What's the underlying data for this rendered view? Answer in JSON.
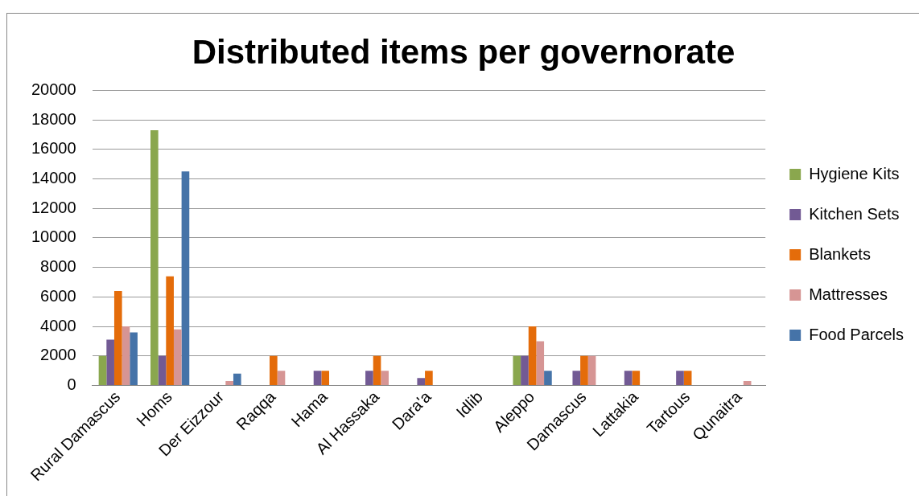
{
  "chart_data": {
    "type": "bar",
    "title": "Distributed items per governorate",
    "categories": [
      "Rural Damascus",
      "Homs",
      "Der Eizzour",
      "Raqqa",
      "Hama",
      "Al Hassaka",
      "Dara'a",
      "Idlib",
      "Aleppo",
      "Damascus",
      "Lattakia",
      "Tartous",
      "Qunaitra"
    ],
    "series": [
      {
        "name": "Hygiene Kits",
        "color": "#8aa74e",
        "values": [
          2000,
          17300,
          0,
          0,
          0,
          0,
          0,
          0,
          2000,
          0,
          0,
          0,
          0
        ]
      },
      {
        "name": "Kitchen Sets",
        "color": "#725a94",
        "values": [
          3100,
          2000,
          0,
          0,
          1000,
          1000,
          500,
          0,
          2000,
          1000,
          1000,
          1000,
          0
        ]
      },
      {
        "name": "Blankets",
        "color": "#e46c0a",
        "values": [
          6400,
          7400,
          0,
          2000,
          1000,
          2000,
          1000,
          0,
          4000,
          2000,
          1000,
          1000,
          0
        ]
      },
      {
        "name": "Mattresses",
        "color": "#d69594",
        "values": [
          4000,
          3800,
          300,
          1000,
          0,
          1000,
          0,
          0,
          3000,
          2000,
          0,
          0,
          300
        ]
      },
      {
        "name": "Food Parcels",
        "color": "#4573a8",
        "values": [
          3600,
          14500,
          800,
          0,
          0,
          0,
          0,
          0,
          1000,
          0,
          0,
          0,
          0
        ]
      }
    ],
    "ylim": [
      0,
      20000
    ],
    "yticks": [
      0,
      2000,
      4000,
      6000,
      8000,
      10000,
      12000,
      14000,
      16000,
      18000,
      20000
    ],
    "grid": "y",
    "legend": "right"
  }
}
